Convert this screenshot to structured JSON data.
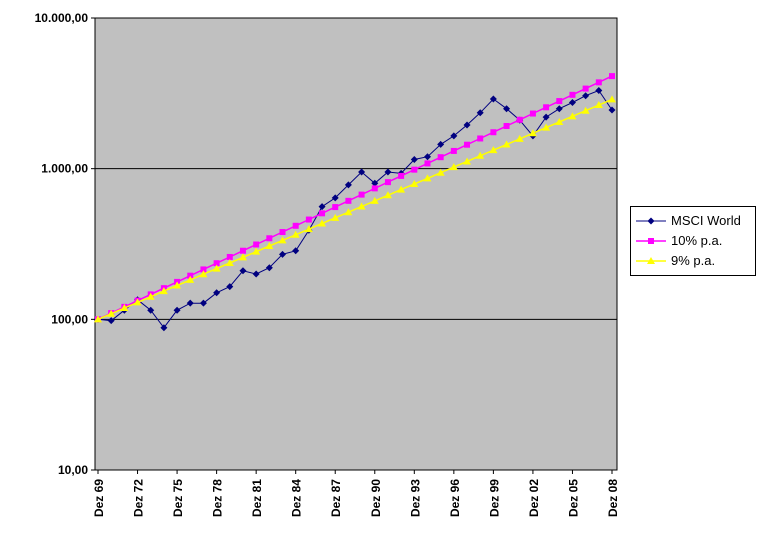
{
  "chart_data": {
    "type": "line",
    "log_scale": true,
    "y_range": [
      10,
      10000
    ],
    "plot_bg": "#C0C0C0",
    "grid": "horizontal-major",
    "legend_position": "right",
    "x_tick_step": 3,
    "y_ticks": [
      {
        "label": "10.000,00",
        "value": 10000
      },
      {
        "label": "1.000,00",
        "value": 1000
      },
      {
        "label": "100,00",
        "value": 100
      },
      {
        "label": "10,00",
        "value": 10
      }
    ],
    "x_tick_labels": [
      "Dez 69",
      "Dez 72",
      "Dez 75",
      "Dez 78",
      "Dez 81",
      "Dez 84",
      "Dez 87",
      "Dez 90",
      "Dez 93",
      "Dez 96",
      "Dez 99",
      "Dez 02",
      "Dez 05",
      "Dez 08"
    ],
    "categories": [
      "Dez 69",
      "Dez 70",
      "Dez 71",
      "Dez 72",
      "Dez 73",
      "Dez 74",
      "Dez 75",
      "Dez 76",
      "Dez 77",
      "Dez 78",
      "Dez 79",
      "Dez 80",
      "Dez 81",
      "Dez 82",
      "Dez 83",
      "Dez 84",
      "Dez 85",
      "Dez 86",
      "Dez 87",
      "Dez 88",
      "Dez 89",
      "Dez 90",
      "Dez 91",
      "Dez 92",
      "Dez 93",
      "Dez 94",
      "Dez 95",
      "Dez 96",
      "Dez 97",
      "Dez 98",
      "Dez 99",
      "Dez 00",
      "Dez 01",
      "Dez 02",
      "Dez 03",
      "Dez 04",
      "Dez 05",
      "Dez 06",
      "Dez 07",
      "Dez 08"
    ],
    "series": [
      {
        "id": "msci-world",
        "name": "MSCI World",
        "color": "#000080",
        "marker": "diamond",
        "line_width": 1,
        "values": [
          100,
          98,
          115,
          135,
          115,
          88,
          115,
          128,
          128,
          150,
          165,
          210,
          200,
          220,
          270,
          285,
          390,
          560,
          640,
          780,
          950,
          800,
          950,
          930,
          1150,
          1200,
          1450,
          1650,
          1950,
          2350,
          2900,
          2500,
          2100,
          1650,
          2200,
          2500,
          2750,
          3050,
          3300,
          2450
        ]
      },
      {
        "id": "ten-percent-pa",
        "name": "10% p.a.",
        "color": "#FF00FF",
        "marker": "square",
        "line_width": 1.5,
        "values": [
          100,
          110,
          121,
          133.1,
          146.4,
          161.1,
          177.2,
          194.9,
          214.4,
          235.8,
          259.4,
          285.3,
          313.8,
          345.2,
          379.7,
          417.7,
          459.5,
          505.4,
          556,
          611.6,
          672.7,
          740,
          814,
          895.4,
          985,
          1083.5,
          1191.8,
          1311,
          1442.1,
          1586.3,
          1744.9,
          1919.4,
          2111.4,
          2322.5,
          2554.8,
          2810.2,
          3091.3,
          3400.4,
          3740.4,
          4114.5
        ]
      },
      {
        "id": "nine-percent-pa",
        "name": "9% p.a.",
        "color": "#FFFF00",
        "marker": "triangle",
        "line_width": 1.5,
        "values": [
          100,
          109,
          118.8,
          129.5,
          141.2,
          153.9,
          167.7,
          182.8,
          199.3,
          217.2,
          236.7,
          258,
          281.3,
          306.6,
          334.2,
          364.2,
          397,
          432.8,
          471.7,
          514.2,
          560.4,
          610.9,
          665.9,
          725.8,
          791.1,
          862.3,
          939.9,
          1024.5,
          1116.7,
          1217.2,
          1326.8,
          1446.2,
          1576.3,
          1718.2,
          1872.8,
          2041.4,
          2225.1,
          2425.4,
          2643.7,
          2881.6
        ]
      }
    ]
  }
}
